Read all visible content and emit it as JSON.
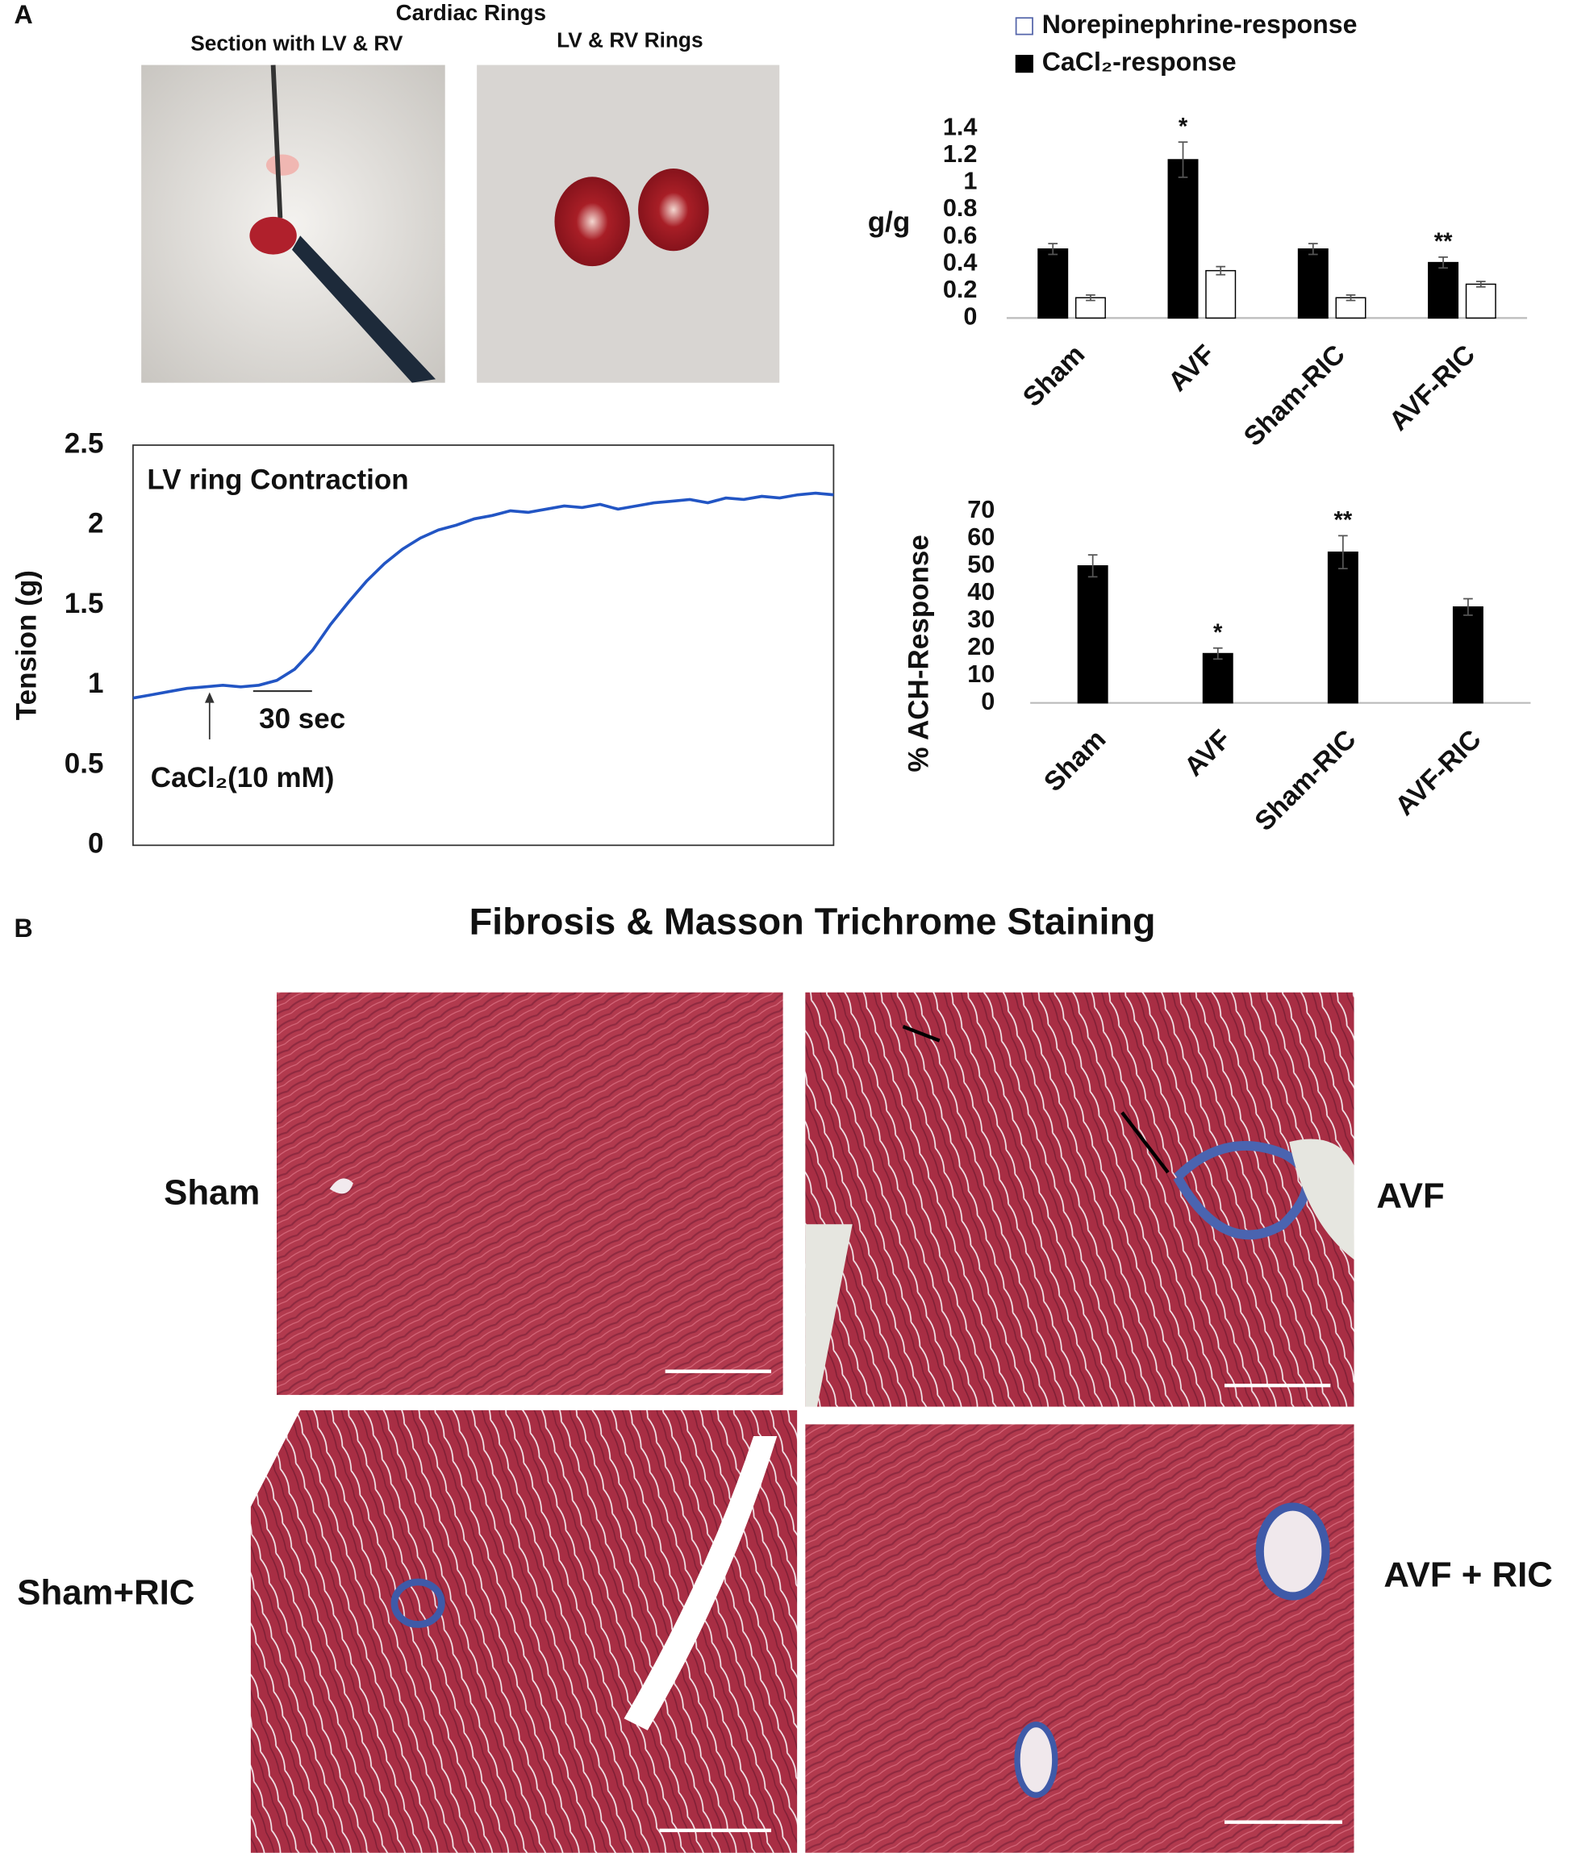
{
  "panel_labels": [
    "A",
    "B"
  ],
  "photos": {
    "title": "Cardiac Rings",
    "labels": [
      "Section with LV & RV",
      "LV & RV Rings"
    ]
  },
  "chart_data": [
    {
      "type": "line",
      "title": "LV ring Contraction",
      "y_label": "Tension (g)",
      "annotations": [
        "30 sec",
        "CaCl₂(10 mM)"
      ],
      "color": "#2255c4",
      "values": [
        0.92,
        0.94,
        0.96,
        0.98,
        0.99,
        1.0,
        0.99,
        1.0,
        1.03,
        1.1,
        1.22,
        1.38,
        1.52,
        1.65,
        1.76,
        1.85,
        1.92,
        1.97,
        2.0,
        2.04,
        2.06,
        2.09,
        2.08,
        2.1,
        2.12,
        2.11,
        2.13,
        2.1,
        2.12,
        2.14,
        2.15,
        2.16,
        2.14,
        2.17,
        2.16,
        2.18,
        2.17,
        2.19,
        2.2,
        2.19
      ],
      "ylim": [
        0,
        2.5
      ],
      "yticks": [
        0,
        0.5,
        1,
        1.5,
        2,
        2.5
      ]
    },
    {
      "type": "bar",
      "y_label": "g/g",
      "categories": [
        "Sham",
        "AVF",
        "Sham-RIC",
        "AVF-RIC"
      ],
      "series": [
        {
          "name": "CaCl₂-response",
          "color": "#000000",
          "values": [
            0.51,
            1.17,
            0.51,
            0.41
          ],
          "errors": [
            0.04,
            0.13,
            0.04,
            0.04
          ]
        },
        {
          "name": "Norepinephrine-response",
          "color": "#ffffff",
          "values": [
            0.15,
            0.35,
            0.15,
            0.25
          ],
          "errors": [
            0.02,
            0.03,
            0.02,
            0.02
          ]
        }
      ],
      "annotations": [
        null,
        "*",
        null,
        "**"
      ],
      "ylim": [
        0,
        1.4
      ],
      "yticks": [
        0,
        0.2,
        0.4,
        0.6,
        0.8,
        1,
        1.2,
        1.4
      ]
    },
    {
      "type": "bar",
      "y_label": "% ACH-Response",
      "categories": [
        "Sham",
        "AVF",
        "Sham-RIC",
        "AVF-RIC"
      ],
      "color": "#000000",
      "values": [
        50,
        18,
        55,
        35
      ],
      "errors": [
        4,
        2,
        6,
        3
      ],
      "annotations": [
        null,
        "*",
        "**",
        null
      ],
      "ylim": [
        0,
        70
      ],
      "yticks": [
        0,
        10,
        20,
        30,
        40,
        50,
        60,
        70
      ]
    }
  ],
  "histology": {
    "title": "Fibrosis & Masson Trichrome Staining",
    "labels": [
      "Sham",
      "AVF",
      "Sham+RIC",
      "AVF + RIC"
    ]
  }
}
